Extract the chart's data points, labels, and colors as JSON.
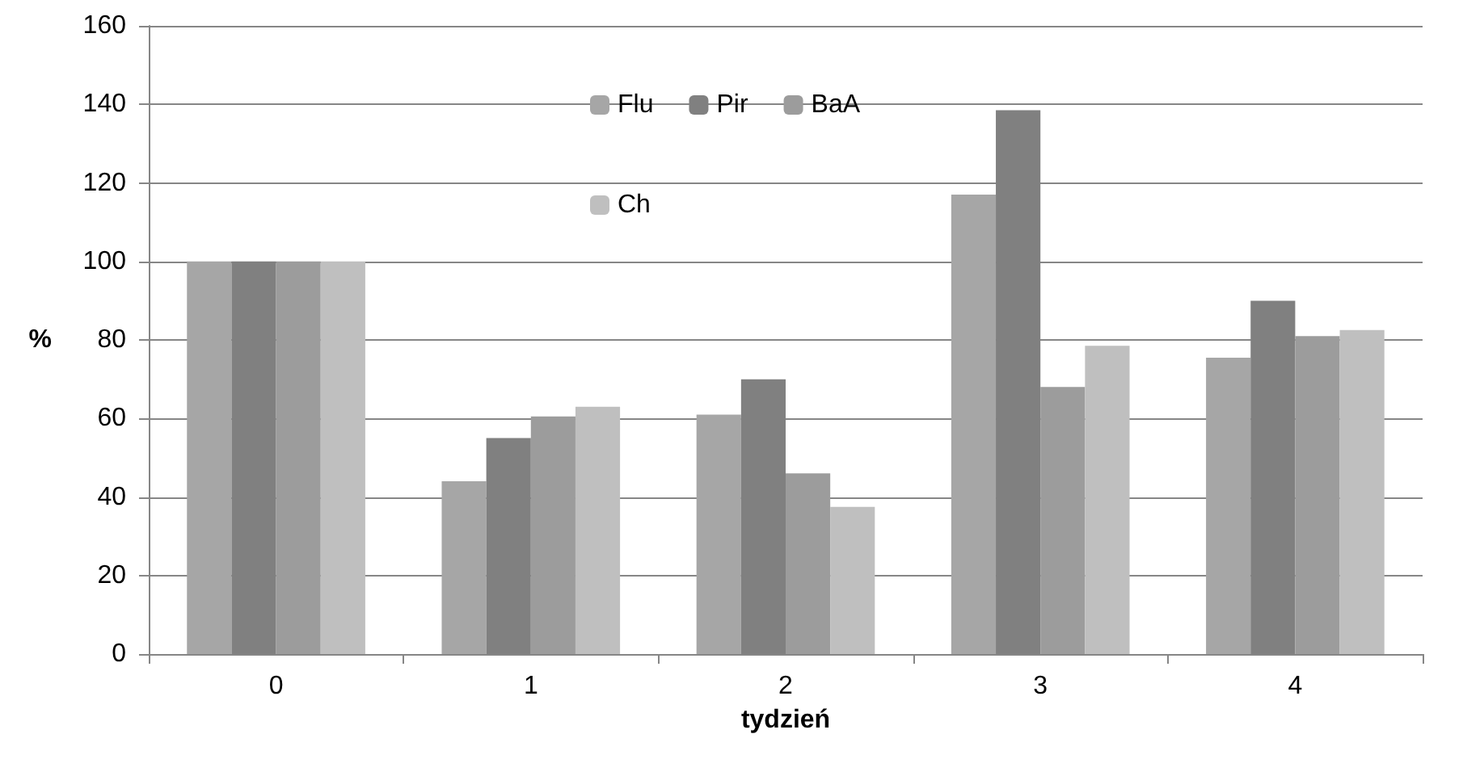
{
  "chart_data": {
    "type": "bar",
    "xlabel": "tydzień",
    "ylabel": "%",
    "categories": [
      "0",
      "1",
      "2",
      "3",
      "4"
    ],
    "series": [
      {
        "name": "Flu",
        "color": "#a6a6a6",
        "values": [
          100,
          44,
          61,
          117,
          75.5
        ]
      },
      {
        "name": "Pir",
        "color": "#808080",
        "values": [
          100,
          55,
          70,
          138.5,
          90
        ]
      },
      {
        "name": "BaA",
        "color": "#9c9c9c",
        "values": [
          100,
          60.5,
          46,
          68,
          81
        ]
      },
      {
        "name": "Ch",
        "color": "#bfbfbf",
        "values": [
          100,
          63,
          37.5,
          78.5,
          82.5
        ]
      }
    ],
    "ylim": [
      0,
      160
    ],
    "yticks": [
      0,
      20,
      40,
      60,
      80,
      100,
      120,
      140,
      160
    ],
    "grid": "y",
    "legend": "top"
  }
}
